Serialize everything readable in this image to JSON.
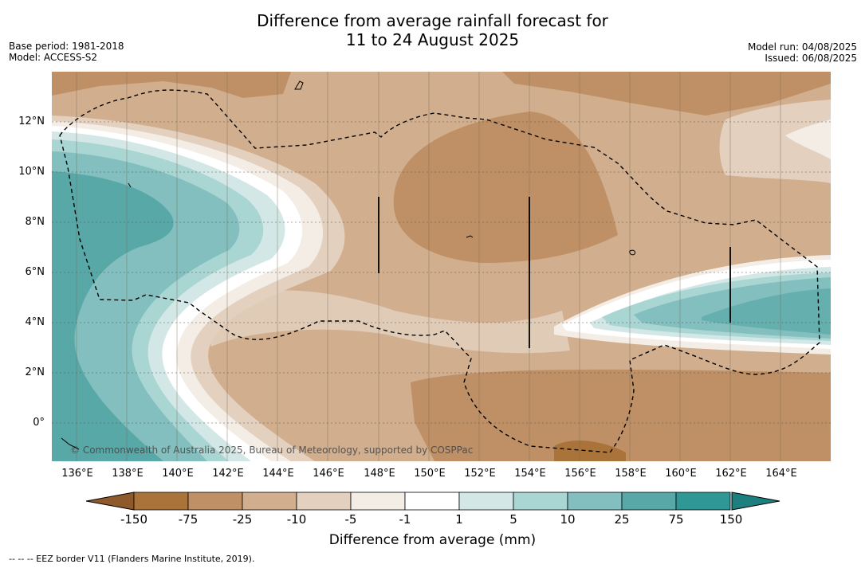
{
  "title_line1": "Difference from average rainfall forecast for",
  "title_line2": "11 to 24 August 2025",
  "meta_left": {
    "base_period": "Base period: 1981-2018",
    "model": "Model: ACCESS-S2"
  },
  "meta_right": {
    "model_run": "Model run: 04/08/2025",
    "issued": "Issued: 06/08/2025"
  },
  "map": {
    "lat_labels": [
      "12°N",
      "10°N",
      "8°N",
      "6°N",
      "4°N",
      "2°N",
      "0°"
    ],
    "lon_labels": [
      "136°E",
      "138°E",
      "140°E",
      "142°E",
      "144°E",
      "146°E",
      "148°E",
      "150°E",
      "152°E",
      "154°E",
      "156°E",
      "158°E",
      "160°E",
      "162°E",
      "164°E"
    ],
    "credit": "© Commonwealth of Australia 2025, Bureau of Meteorology, supported by COSPPac"
  },
  "legend": {
    "ticks": [
      "-150",
      "-75",
      "-25",
      "-10",
      "-5",
      "-1",
      "1",
      "5",
      "10",
      "25",
      "75",
      "150"
    ],
    "colors": [
      "#8f5a2b",
      "#a97339",
      "#bf9065",
      "#d1ae8d",
      "#e3d0be",
      "#f3ede6",
      "#ffffff",
      "#d3e8e6",
      "#a9d5d3",
      "#82bfbe",
      "#58a8a8",
      "#2f9796",
      "#1d7f7e"
    ],
    "label": "Difference from average (mm)"
  },
  "footer": "--  --  -- EEZ border V11 (Flanders Marine Institute, 2019)."
}
